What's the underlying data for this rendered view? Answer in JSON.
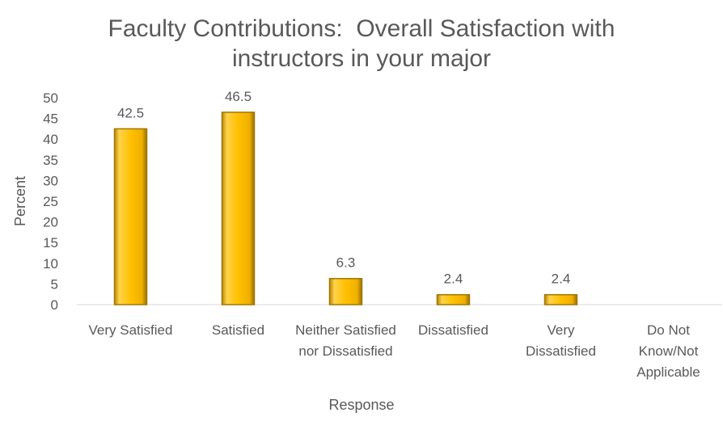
{
  "chart_data": {
    "type": "bar",
    "title": "Faculty Contributions:  Overall Satisfaction with instructors in your major",
    "categories": [
      "Very Satisfied",
      "Satisfied",
      "Neither Satisfied nor Dissatisfied",
      "Dissatisfied",
      "Very Dissatisfied",
      "Do Not Know/Not Applicable"
    ],
    "values": [
      42.5,
      46.5,
      6.3,
      2.4,
      2.4,
      null
    ],
    "color": "#FFC000",
    "x_label": "Response",
    "y_label": "Percent",
    "ylim": [
      0,
      50
    ],
    "yticks": [
      0,
      5,
      10,
      15,
      20,
      25,
      30,
      35,
      40,
      45,
      50
    ],
    "grid": false
  }
}
